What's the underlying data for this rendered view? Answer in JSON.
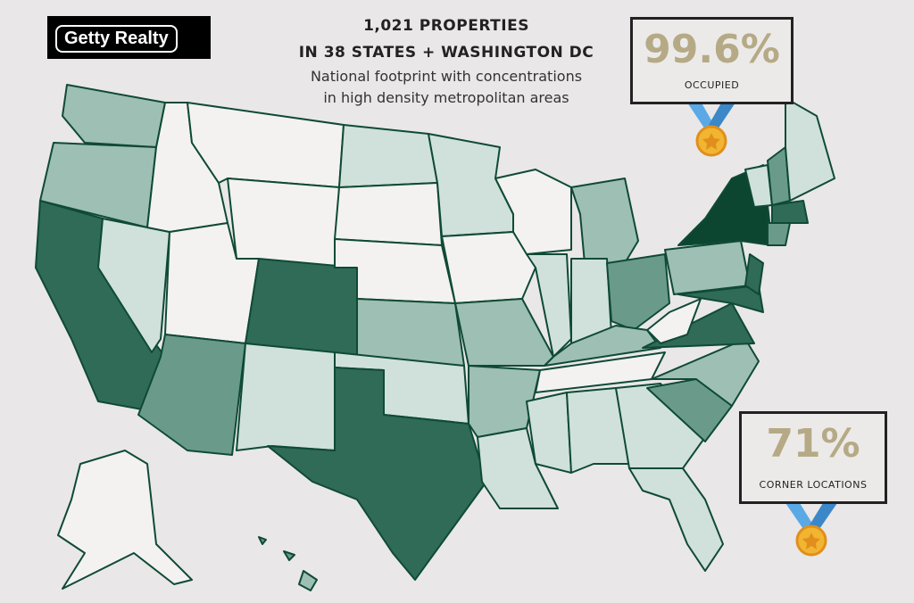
{
  "logo": "Getty Realty",
  "header": {
    "title_lines": [
      "1,021 PROPERTIES",
      "IN 38 STATES + WASHINGTON DC"
    ],
    "subtitle_lines": [
      "National footprint with concentrations",
      "in high density metropolitan areas"
    ]
  },
  "stats": [
    {
      "value": "99.6%",
      "label": "OCCUPIED"
    },
    {
      "value": "71%",
      "label": "CORNER LOCATIONS"
    }
  ]
}
